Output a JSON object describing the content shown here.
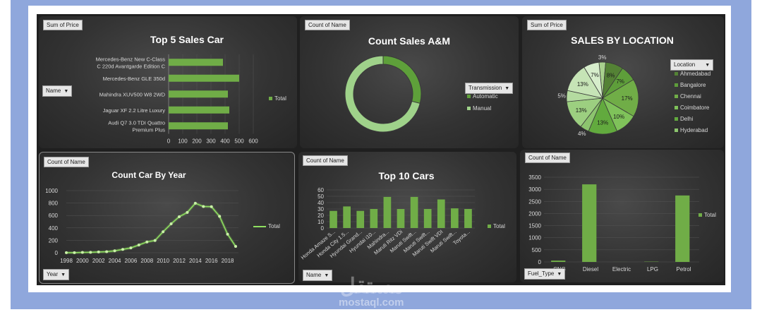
{
  "watermark": {
    "arabic": "مستقل",
    "latin": "mostaql.com"
  },
  "panels": {
    "top5": {
      "tag": "Sum of Price",
      "filter": "Name",
      "legend": "Total"
    },
    "am": {
      "tag": "Count of Name",
      "filter": "Transmission",
      "legend_items": [
        "Automatic",
        "Manual"
      ]
    },
    "loc": {
      "tag": "Sum of Price",
      "filter": "Location",
      "legend_items": [
        "Ahmedabad",
        "Bangalore",
        "Chennai",
        "Coimbatore",
        "Delhi",
        "Hyderabad"
      ]
    },
    "year": {
      "tag": "Count of Name",
      "filter": "Year",
      "legend": "Total"
    },
    "top10": {
      "tag": "Count of Name",
      "filter": "Name",
      "legend": "Total"
    },
    "fuel": {
      "tag": "Count of Name",
      "filter": "Fuel_Type",
      "legend": "Total"
    }
  },
  "colors": {
    "bar": "#70ad47",
    "donut_auto": "#5ea03a",
    "donut_manual": "#9fd28a",
    "pie": [
      "#a8d08d",
      "#548235",
      "#5e9e3a",
      "#70ad47",
      "#7fc25a",
      "#62aa3e",
      "#8cc46e",
      "#9ccf80",
      "#b4dba0",
      "#c6e4b6",
      "#d6edcb"
    ]
  },
  "chart_data": [
    {
      "id": "top5",
      "type": "bar",
      "orientation": "horizontal",
      "title": "Top 5 Sales Car",
      "categories": [
        [
          "Mercedes-Benz New C-Class",
          "C 220d Avantgarde Edition C"
        ],
        [
          "Mercedes-Benz GLE 350d"
        ],
        [
          "Mahindra XUV500 W8 2WD"
        ],
        [
          "Jaguar XF 2.2 Litre Luxury"
        ],
        [
          "Audi Q7 3.0 TDI Quattro",
          "Premium Plus"
        ]
      ],
      "values": [
        385,
        500,
        420,
        430,
        420
      ],
      "xlim": [
        0,
        600
      ],
      "xticks": [
        "0",
        "100",
        "200",
        "300",
        "400",
        "500",
        "600"
      ],
      "series": [
        {
          "name": "Total"
        }
      ]
    },
    {
      "id": "am",
      "type": "pie",
      "style": "donut",
      "title": "Count Sales A&M",
      "labels": [
        "Automatic",
        "Manual"
      ],
      "values": [
        29,
        71
      ]
    },
    {
      "id": "loc",
      "type": "pie",
      "title": "SALES BY LOCATION",
      "values": [
        3,
        8,
        7,
        17,
        10,
        13,
        4,
        13,
        5,
        13,
        7
      ],
      "data_labels": [
        "3%",
        "8%",
        "7%",
        "17%",
        "10%",
        "13%",
        "4%",
        "13%",
        "5%",
        "13%",
        "7%"
      ]
    },
    {
      "id": "year",
      "type": "line",
      "title": "Count Car By Year",
      "x": [
        1998,
        1999,
        2000,
        2001,
        2002,
        2003,
        2004,
        2005,
        2006,
        2007,
        2008,
        2009,
        2010,
        2011,
        2012,
        2013,
        2014,
        2015,
        2016,
        2017,
        2018,
        2019
      ],
      "values": [
        2,
        2,
        5,
        7,
        13,
        17,
        31,
        54,
        78,
        125,
        174,
        198,
        338,
        466,
        580,
        649,
        797,
        744,
        741,
        587,
        298,
        102
      ],
      "ylim": [
        0,
        1000
      ],
      "yticks": [
        "0",
        "200",
        "400",
        "600",
        "800",
        "1000"
      ],
      "xticks": [
        "1998",
        "2000",
        "2002",
        "2004",
        "2006",
        "2008",
        "2010",
        "2012",
        "2014",
        "2016",
        "2018"
      ],
      "series": [
        {
          "name": "Total"
        }
      ]
    },
    {
      "id": "top10",
      "type": "bar",
      "title": "Top 10 Cars",
      "categories": [
        "Honda Amaze S...",
        "Honda City 1.5...",
        "Hyundai Grand...",
        "Hyundai i10...",
        "Mahindra...",
        "Maruti Ritz VDi",
        "Maruti Swift...",
        "Maruti Swift...",
        "Maruti Swift VDI",
        "Maruti Swift...",
        "Toyota..."
      ],
      "values": [
        27,
        34,
        27,
        30,
        49,
        30,
        49,
        30,
        45,
        31,
        30
      ],
      "ylim": [
        0,
        60
      ],
      "yticks": [
        "0",
        "10",
        "20",
        "30",
        "40",
        "50",
        "60"
      ],
      "series": [
        {
          "name": "Total"
        }
      ]
    },
    {
      "id": "fuel",
      "type": "bar",
      "title": "",
      "categories": [
        "CNG",
        "Diesel",
        "Electric",
        "LPG",
        "Petrol"
      ],
      "values": [
        56,
        3205,
        2,
        12,
        2746
      ],
      "ylim": [
        0,
        3500
      ],
      "yticks": [
        "0",
        "500",
        "1000",
        "1500",
        "2000",
        "2500",
        "3000",
        "3500"
      ],
      "series": [
        {
          "name": "Total"
        }
      ]
    }
  ]
}
